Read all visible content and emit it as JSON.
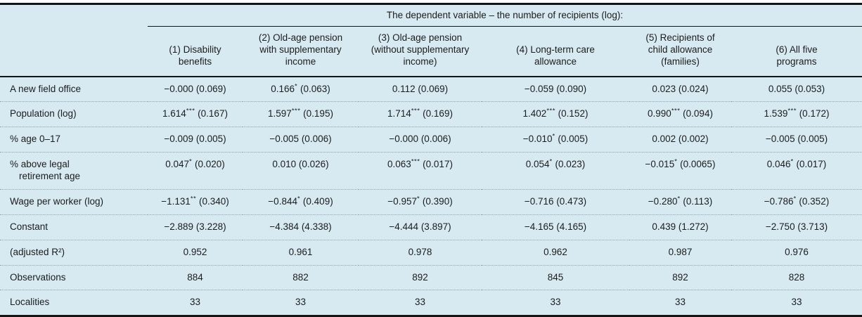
{
  "table": {
    "spanning_header": "The dependent variable – the number of recipients (log):",
    "columns": [
      "(1) Disability\nbenefits",
      "(2) Old-age pension\nwith supplementary\nincome",
      "(3) Old-age pension\n(without supplementary\nincome)",
      "(4) Long-term care\nallowance",
      "(5) Recipients of\nchild allowance\n(families)",
      "(6) All five\nprograms"
    ],
    "rows": [
      {
        "label": "A new field office",
        "cells": [
          {
            "c": "−0.000",
            "s": "",
            "e": "(0.069)"
          },
          {
            "c": "0.166",
            "s": "*",
            "e": "(0.063)"
          },
          {
            "c": "0.112",
            "s": "",
            "e": "(0.069)"
          },
          {
            "c": "−0.059",
            "s": "",
            "e": "(0.090)"
          },
          {
            "c": "0.023",
            "s": "",
            "e": "(0.024)"
          },
          {
            "c": "0.055",
            "s": "",
            "e": "(0.053)"
          }
        ]
      },
      {
        "label": "Population (log)",
        "cells": [
          {
            "c": "1.614",
            "s": "***",
            "e": "(0.167)"
          },
          {
            "c": "1.597",
            "s": "***",
            "e": "(0.195)"
          },
          {
            "c": "1.714",
            "s": "***",
            "e": "(0.169)"
          },
          {
            "c": "1.402",
            "s": "***",
            "e": "(0.152)"
          },
          {
            "c": "0.990",
            "s": "***",
            "e": "(0.094)"
          },
          {
            "c": "1.539",
            "s": "***",
            "e": "(0.172)"
          }
        ]
      },
      {
        "label": "% age 0–17",
        "cells": [
          {
            "c": "−0.009",
            "s": "",
            "e": "(0.005)"
          },
          {
            "c": "−0.005",
            "s": "",
            "e": "(0.006)"
          },
          {
            "c": "−0.000",
            "s": "",
            "e": "(0.006)"
          },
          {
            "c": "−0.010",
            "s": "*",
            "e": "(0.005)"
          },
          {
            "c": "0.002",
            "s": "",
            "e": "(0.002)"
          },
          {
            "c": "−0.005",
            "s": "",
            "e": "(0.005)"
          }
        ]
      },
      {
        "label": "% above legal\nretirement age",
        "cells": [
          {
            "c": "0.047",
            "s": "*",
            "e": "(0.020)"
          },
          {
            "c": "0.010",
            "s": "",
            "e": "(0.026)"
          },
          {
            "c": "0.063",
            "s": "***",
            "e": "(0.017)"
          },
          {
            "c": "0.054",
            "s": "*",
            "e": "(0.023)"
          },
          {
            "c": "−0.015",
            "s": "*",
            "e": "(0.0065)"
          },
          {
            "c": "0.046",
            "s": "*",
            "e": "(0.017)"
          }
        ]
      },
      {
        "label": "Wage per worker (log)",
        "cells": [
          {
            "c": "−1.131",
            "s": "**",
            "e": "(0.340)"
          },
          {
            "c": "−0.844",
            "s": "*",
            "e": "(0.409)"
          },
          {
            "c": "−0.957",
            "s": "*",
            "e": "(0.390)"
          },
          {
            "c": "−0.716",
            "s": "",
            "e": "(0.473)"
          },
          {
            "c": "−0.280",
            "s": "*",
            "e": "(0.113)"
          },
          {
            "c": "−0.786",
            "s": "*",
            "e": "(0.352)"
          }
        ]
      },
      {
        "label": "Constant",
        "cells": [
          {
            "c": "−2.889",
            "s": "",
            "e": "(3.228)"
          },
          {
            "c": "−4.384",
            "s": "",
            "e": "(4.338)"
          },
          {
            "c": "−4.444",
            "s": "",
            "e": "(3.897)"
          },
          {
            "c": "−4.165",
            "s": "",
            "e": "(4.165)"
          },
          {
            "c": "0.439",
            "s": "",
            "e": "(1.272)"
          },
          {
            "c": "−2.750",
            "s": "",
            "e": "(3.713)"
          }
        ]
      },
      {
        "label": "(adjusted R²)",
        "cells": [
          "0.952",
          "0.961",
          "0.978",
          "0.962",
          "0.987",
          "0.976"
        ]
      },
      {
        "label": "Observations",
        "cells": [
          "884",
          "882",
          "892",
          "845",
          "892",
          "828"
        ]
      },
      {
        "label": "Localities",
        "cells": [
          "33",
          "33",
          "33",
          "33",
          "33",
          "33"
        ]
      }
    ],
    "colors": {
      "table_background": "#d7eaf2",
      "rule": "#141414",
      "dotted_separator": "#93a4ab",
      "text": "#1c1c1c"
    }
  }
}
